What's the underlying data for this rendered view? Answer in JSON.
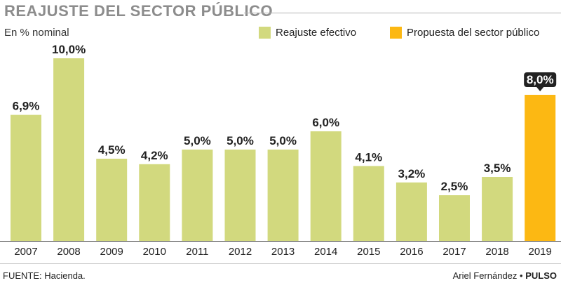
{
  "header": {
    "title": "REAJUSTE DEL SECTOR PÚBLICO",
    "subtitle": "En % nominal"
  },
  "legend": {
    "effective": "Reajuste efectivo",
    "proposal": "Propuesta del sector público"
  },
  "colors": {
    "effective": "#d2d97e",
    "proposal": "#fcb813",
    "baseline": "#444444",
    "title": "#8c8c8c"
  },
  "chart_data": {
    "type": "bar",
    "title": "REAJUSTE DEL SECTOR PÚBLICO",
    "ylabel": "En % nominal",
    "categories": [
      "2007",
      "2008",
      "2009",
      "2010",
      "2011",
      "2012",
      "2013",
      "2014",
      "2015",
      "2016",
      "2017",
      "2018",
      "2019"
    ],
    "series": [
      {
        "name": "Reajuste efectivo",
        "values": [
          6.9,
          10.0,
          4.5,
          4.2,
          5.0,
          5.0,
          5.0,
          6.0,
          4.1,
          3.2,
          2.5,
          3.5,
          null
        ]
      },
      {
        "name": "Propuesta del sector público",
        "values": [
          null,
          null,
          null,
          null,
          null,
          null,
          null,
          null,
          null,
          null,
          null,
          null,
          8.0
        ]
      }
    ],
    "data_labels": [
      "6,9%",
      "10,0%",
      "4,5%",
      "4,2%",
      "5,0%",
      "5,0%",
      "5,0%",
      "6,0%",
      "4,1%",
      "3,2%",
      "2,5%",
      "3,5%",
      "8,0%"
    ],
    "ylim": [
      0,
      10
    ],
    "grid": false,
    "legend_position": "top-right"
  },
  "footer": {
    "source": "FUENTE: Hacienda.",
    "author": "Ariel Fernández •",
    "brand": "PULSO"
  }
}
